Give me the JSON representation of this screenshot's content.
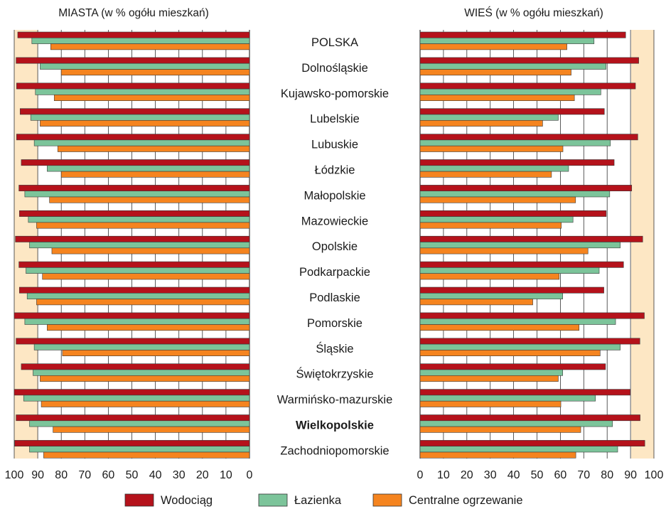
{
  "chart_data": {
    "type": "bar",
    "left_panel": {
      "title": "MIASTA  (w % ogółu mieszkań)",
      "xlim": [
        100,
        0
      ],
      "ticks": [
        "100",
        "90",
        "80",
        "70",
        "60",
        "50",
        "40",
        "30",
        "20",
        "10",
        "0"
      ]
    },
    "right_panel": {
      "title": "WIEŚ  (w % ogółu mieszkań)",
      "xlim": [
        0,
        100
      ],
      "ticks": [
        "0",
        "10",
        "20",
        "30",
        "40",
        "50",
        "60",
        "70",
        "80",
        "90",
        "100"
      ]
    },
    "categories": [
      "POLSKA",
      "Dolnośląskie",
      "Kujawsko-pomorskie",
      "Lubelskie",
      "Lubuskie",
      "Łódzkie",
      "Małopolskie",
      "Mazowieckie",
      "Opolskie",
      "Podkarpackie",
      "Podlaskie",
      "Pomorskie",
      "Śląskie",
      "Świętokrzyskie",
      "Warmińsko-mazurskie",
      "Wielkopolskie",
      "Zachodniopomorskie"
    ],
    "highlighted_category": "Wielkopolskie",
    "series": [
      {
        "name": "Wodociąg",
        "color": "#b5121b",
        "miasta": [
          98.5,
          99.2,
          99.0,
          97.5,
          99.0,
          97.0,
          98.0,
          97.8,
          99.5,
          98.0,
          97.8,
          100.0,
          99.2,
          97.0,
          100.0,
          99.2,
          99.8
        ],
        "wies": [
          87.9,
          93.5,
          92.1,
          78.8,
          93.1,
          83.0,
          90.5,
          79.6,
          95.2,
          87.0,
          78.6,
          95.9,
          94.0,
          79.3,
          89.9,
          94.1,
          96.1
        ]
      },
      {
        "name": "Łazienka",
        "color": "#7cc49a",
        "miasta": [
          92.5,
          89.0,
          91.0,
          93.0,
          91.5,
          86.0,
          95.5,
          94.0,
          93.5,
          95.0,
          94.5,
          95.5,
          91.5,
          92.0,
          96.0,
          93.5,
          93.5
        ],
        "wies": [
          74.4,
          79.5,
          77.3,
          59.1,
          81.4,
          63.5,
          81.1,
          65.4,
          85.6,
          76.6,
          61.0,
          83.6,
          85.6,
          61.0,
          75.0,
          82.3,
          84.5
        ]
      },
      {
        "name": "Centralne ogrzewanie",
        "color": "#f5841f",
        "miasta": [
          84.5,
          80.0,
          83.0,
          89.0,
          81.5,
          80.0,
          85.0,
          90.5,
          84.0,
          88.0,
          90.5,
          86.0,
          79.5,
          89.0,
          88.5,
          83.5,
          87.5
        ],
        "wies": [
          62.8,
          64.6,
          66.0,
          52.4,
          61.1,
          56.2,
          66.5,
          60.4,
          71.8,
          59.5,
          48.2,
          68.0,
          77.0,
          59.1,
          60.2,
          68.7,
          66.6
        ]
      }
    ],
    "grid": true,
    "legend_position": "bottom"
  }
}
